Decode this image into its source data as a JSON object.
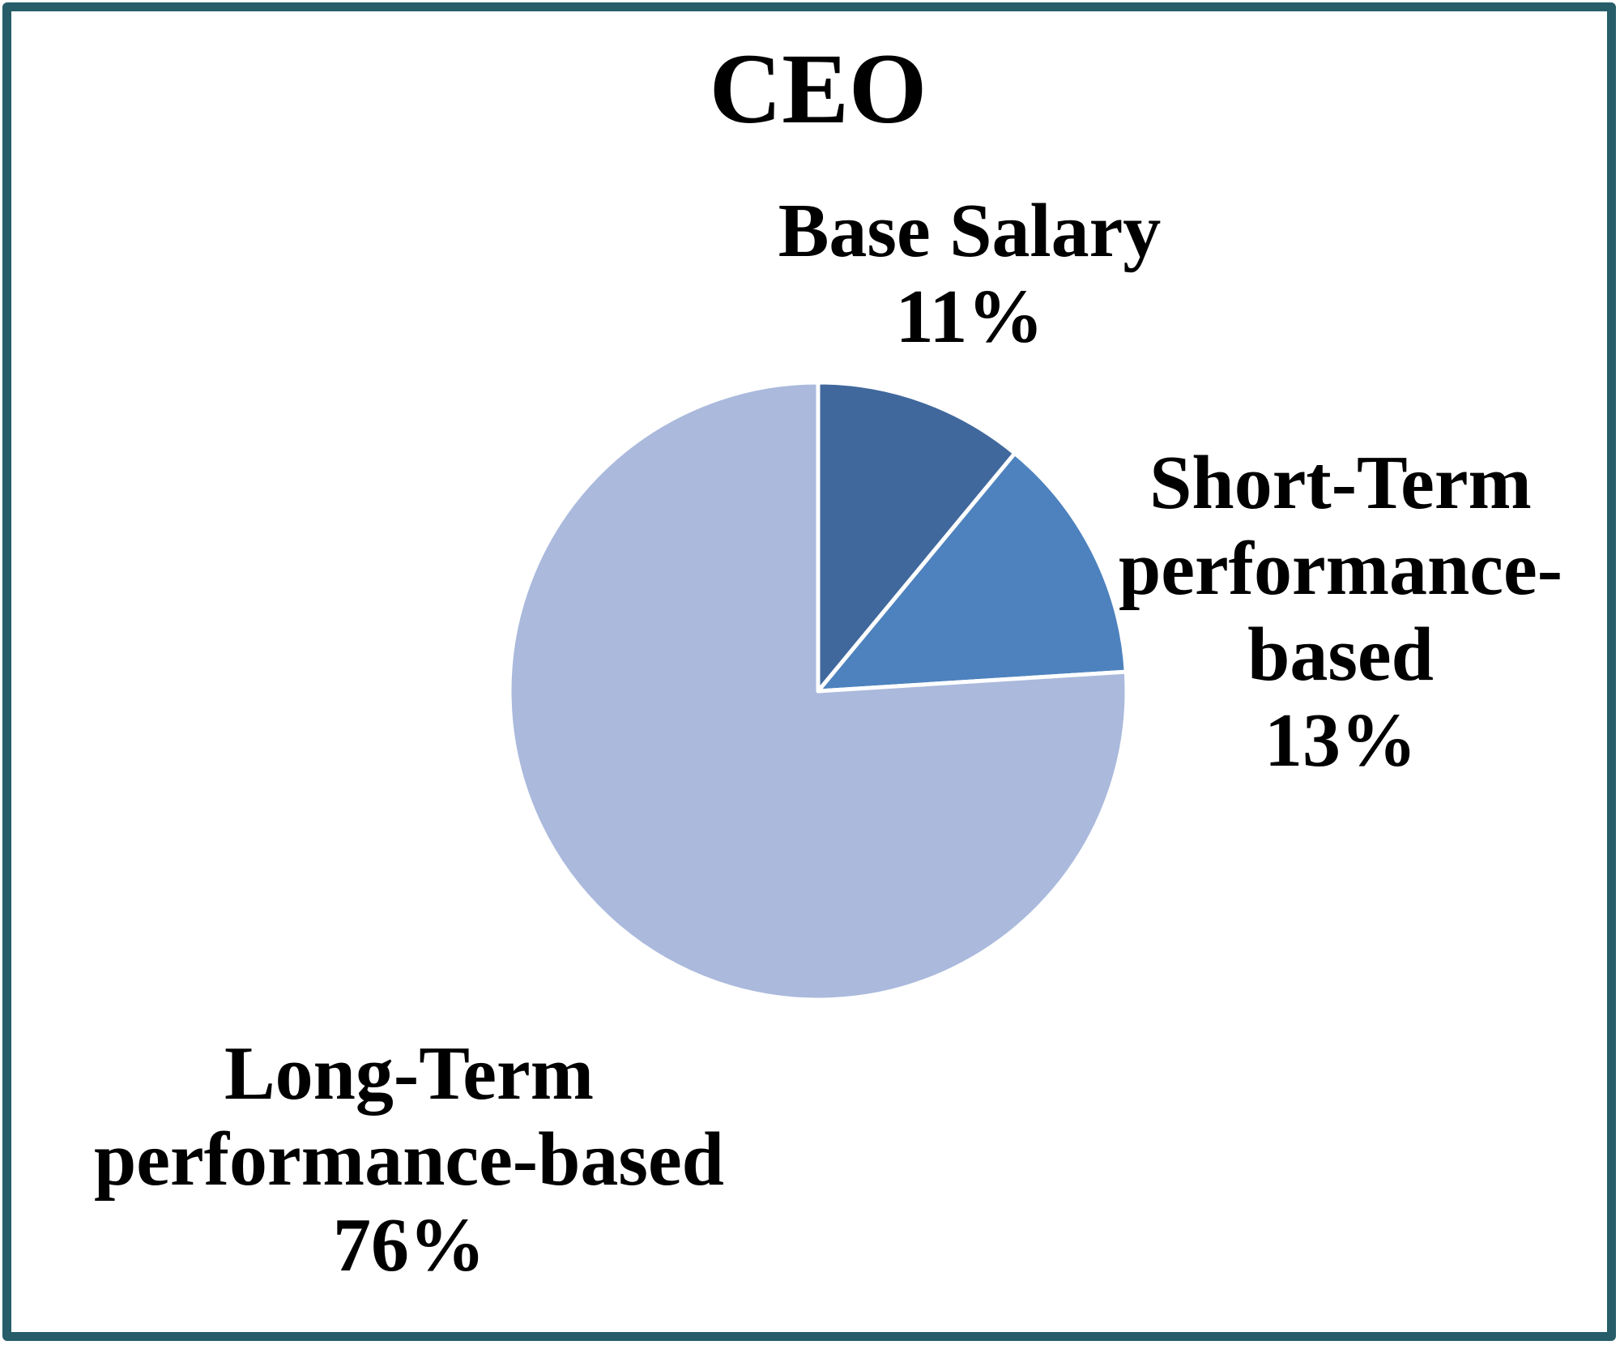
{
  "frame": {
    "border_color": "#265d69"
  },
  "chart_data": {
    "type": "pie",
    "title": "CEO",
    "start_angle_deg": 0,
    "direction": "clockwise",
    "legend_position": "none",
    "separator_color": "#ffffff",
    "slices": [
      {
        "label": "Base Salary",
        "value_pct": 11,
        "color": "#40689d",
        "label_lines": [
          "Base Salary",
          "11%"
        ]
      },
      {
        "label": "Short-Term performance-based",
        "value_pct": 13,
        "color": "#4d82be",
        "label_lines": [
          "Short-Term",
          "performance-",
          "based",
          "13%"
        ]
      },
      {
        "label": "Long-Term performance-based",
        "value_pct": 76,
        "color": "#aab9dc",
        "label_lines": [
          "Long-Term",
          "performance-based",
          "76%"
        ]
      }
    ]
  }
}
